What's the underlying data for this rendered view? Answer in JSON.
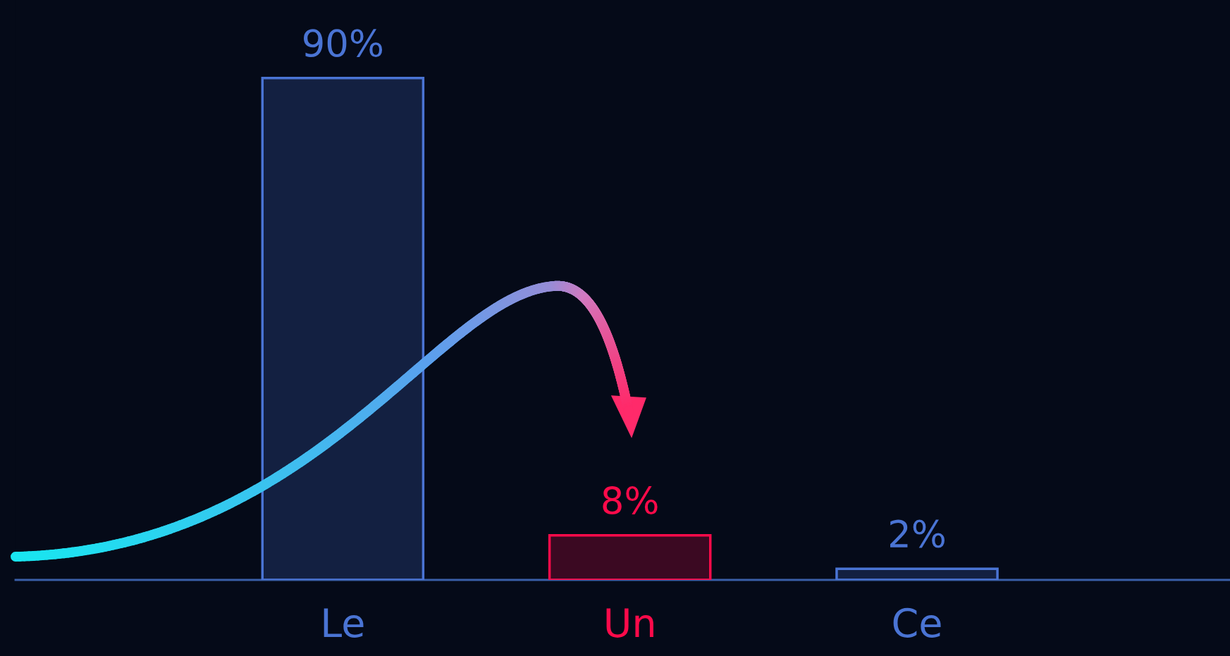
{
  "chart_data": {
    "type": "bar",
    "categories": [
      "Le",
      "Un",
      "Ce"
    ],
    "values": [
      90,
      8,
      2
    ],
    "colors": [
      "#4a74d4",
      "#ff0a4a",
      "#4a74d4"
    ],
    "value_labels": [
      "90%",
      "8%",
      "2%"
    ],
    "ylim": [
      0,
      104
    ],
    "grid": false,
    "legend": false,
    "tick_labels": "x"
  }
}
